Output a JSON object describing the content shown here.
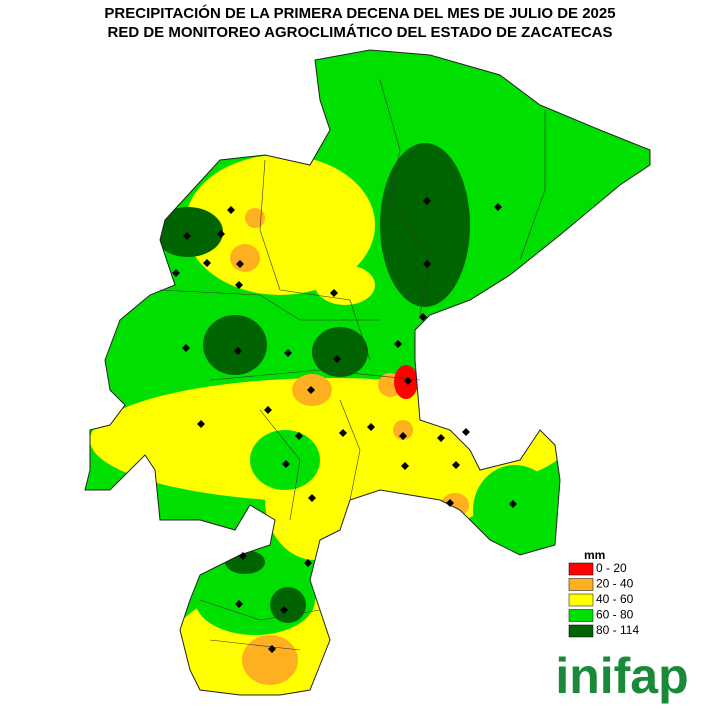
{
  "title": [
    "PRECIPITACIÓN DE LA PRIMERA DECENA DEL MES DE JULIO DE 2025",
    "RED DE MONITOREO AGROCLIMÁTICO DEL ESTADO DE ZACATECAS"
  ],
  "legend": {
    "title": "mm",
    "items": [
      {
        "label": "0 - 20",
        "color": "#ff0000"
      },
      {
        "label": "20 - 40",
        "color": "#ffb020"
      },
      {
        "label": "40 - 60",
        "color": "#ffff00"
      },
      {
        "label": "60 - 80",
        "color": "#00e000"
      },
      {
        "label": "80 - 114",
        "color": "#006400"
      }
    ]
  },
  "logo": "inifap"
}
